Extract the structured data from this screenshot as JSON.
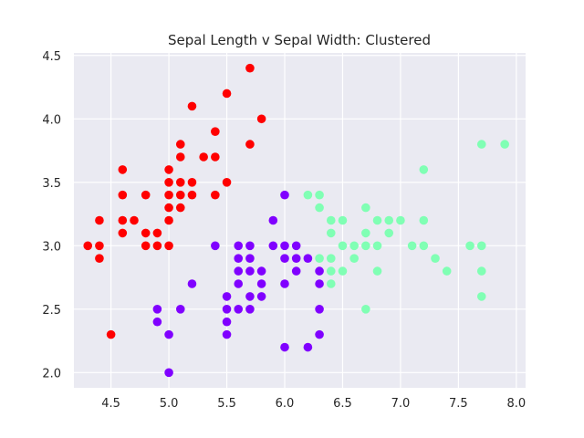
{
  "chart_data": {
    "type": "scatter",
    "title": "Sepal Length v Sepal Width: Clustered",
    "xlabel": "",
    "ylabel": "",
    "xlim": [
      4.18,
      8.08
    ],
    "ylim": [
      1.88,
      4.52
    ],
    "grid": true,
    "x_ticks": [
      "4.5",
      "5.0",
      "5.5",
      "6.0",
      "6.5",
      "7.0",
      "7.5",
      "8.0"
    ],
    "y_ticks": [
      "2.0",
      "2.5",
      "3.0",
      "3.5",
      "4.0",
      "4.5"
    ],
    "colors": {
      "background": "#eaeaf2",
      "grid": "#ffffff",
      "cluster_red": "#ff0000",
      "cluster_purple": "#8000ff",
      "cluster_green": "#80ffb4"
    },
    "series": [
      {
        "color": "#ff0000",
        "points": [
          [
            4.3,
            3.0
          ],
          [
            4.4,
            2.9
          ],
          [
            4.4,
            3.0
          ],
          [
            4.4,
            3.2
          ],
          [
            4.5,
            2.3
          ],
          [
            4.6,
            3.1
          ],
          [
            4.6,
            3.2
          ],
          [
            4.6,
            3.4
          ],
          [
            4.6,
            3.6
          ],
          [
            4.7,
            3.2
          ],
          [
            4.8,
            3.0
          ],
          [
            4.8,
            3.1
          ],
          [
            4.8,
            3.4
          ],
          [
            4.9,
            3.0
          ],
          [
            4.9,
            3.1
          ],
          [
            5.0,
            3.0
          ],
          [
            5.0,
            3.2
          ],
          [
            5.0,
            3.3
          ],
          [
            5.0,
            3.4
          ],
          [
            5.0,
            3.5
          ],
          [
            5.0,
            3.6
          ],
          [
            5.1,
            3.3
          ],
          [
            5.1,
            3.4
          ],
          [
            5.1,
            3.5
          ],
          [
            5.1,
            3.7
          ],
          [
            5.1,
            3.8
          ],
          [
            5.2,
            3.4
          ],
          [
            5.2,
            3.5
          ],
          [
            5.2,
            4.1
          ],
          [
            5.3,
            3.7
          ],
          [
            5.4,
            3.4
          ],
          [
            5.4,
            3.7
          ],
          [
            5.4,
            3.9
          ],
          [
            5.5,
            3.5
          ],
          [
            5.5,
            4.2
          ],
          [
            5.7,
            3.8
          ],
          [
            5.7,
            4.4
          ],
          [
            5.8,
            4.0
          ]
        ]
      },
      {
        "color": "#8000ff",
        "points": [
          [
            4.9,
            2.4
          ],
          [
            4.9,
            2.5
          ],
          [
            5.0,
            2.0
          ],
          [
            5.0,
            2.3
          ],
          [
            5.1,
            2.5
          ],
          [
            5.2,
            2.7
          ],
          [
            5.4,
            3.0
          ],
          [
            5.5,
            2.3
          ],
          [
            5.5,
            2.4
          ],
          [
            5.5,
            2.5
          ],
          [
            5.5,
            2.6
          ],
          [
            5.6,
            2.5
          ],
          [
            5.6,
            2.7
          ],
          [
            5.6,
            2.8
          ],
          [
            5.6,
            2.9
          ],
          [
            5.6,
            3.0
          ],
          [
            5.7,
            2.5
          ],
          [
            5.7,
            2.6
          ],
          [
            5.7,
            2.8
          ],
          [
            5.7,
            2.9
          ],
          [
            5.7,
            3.0
          ],
          [
            5.8,
            2.6
          ],
          [
            5.8,
            2.7
          ],
          [
            5.8,
            2.8
          ],
          [
            5.9,
            3.0
          ],
          [
            5.9,
            3.2
          ],
          [
            6.0,
            2.2
          ],
          [
            6.0,
            2.7
          ],
          [
            6.0,
            2.9
          ],
          [
            6.0,
            3.0
          ],
          [
            6.0,
            3.4
          ],
          [
            6.1,
            2.8
          ],
          [
            6.1,
            2.9
          ],
          [
            6.1,
            3.0
          ],
          [
            6.2,
            2.2
          ],
          [
            6.2,
            2.9
          ],
          [
            6.3,
            2.3
          ],
          [
            6.3,
            2.5
          ],
          [
            6.3,
            2.7
          ],
          [
            6.3,
            2.8
          ]
        ]
      },
      {
        "color": "#80ffb4",
        "points": [
          [
            6.2,
            3.4
          ],
          [
            6.3,
            2.9
          ],
          [
            6.3,
            3.3
          ],
          [
            6.3,
            3.4
          ],
          [
            6.4,
            2.7
          ],
          [
            6.4,
            2.8
          ],
          [
            6.4,
            2.9
          ],
          [
            6.4,
            3.1
          ],
          [
            6.4,
            3.2
          ],
          [
            6.5,
            2.8
          ],
          [
            6.5,
            3.0
          ],
          [
            6.5,
            3.2
          ],
          [
            6.6,
            2.9
          ],
          [
            6.6,
            3.0
          ],
          [
            6.7,
            2.5
          ],
          [
            6.7,
            3.0
          ],
          [
            6.7,
            3.1
          ],
          [
            6.7,
            3.3
          ],
          [
            6.8,
            2.8
          ],
          [
            6.8,
            3.0
          ],
          [
            6.8,
            3.2
          ],
          [
            6.9,
            3.1
          ],
          [
            6.9,
            3.2
          ],
          [
            7.0,
            3.2
          ],
          [
            7.1,
            3.0
          ],
          [
            7.2,
            3.0
          ],
          [
            7.2,
            3.2
          ],
          [
            7.2,
            3.6
          ],
          [
            7.3,
            2.9
          ],
          [
            7.4,
            2.8
          ],
          [
            7.6,
            3.0
          ],
          [
            7.7,
            2.6
          ],
          [
            7.7,
            2.8
          ],
          [
            7.7,
            3.0
          ],
          [
            7.7,
            3.8
          ],
          [
            7.9,
            3.8
          ]
        ]
      }
    ]
  }
}
